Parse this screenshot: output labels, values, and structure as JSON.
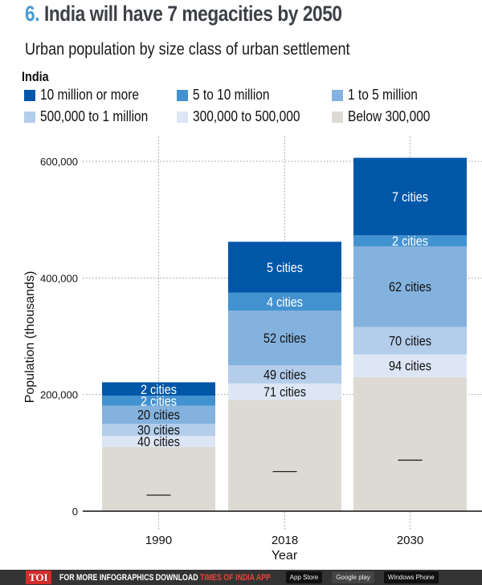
{
  "title": {
    "number": "6.",
    "text": "India will have 7 megacities by 2050"
  },
  "subtitle": "Urban population by size class of urban settlement",
  "region": "India",
  "footer": {
    "logo": "TOI",
    "text": "FOR MORE  INFOGRAPHICS DOWNLOAD ",
    "app": "TIMES OF INDIA  APP",
    "badges": [
      "App Store",
      "Google play",
      "Windows Phone"
    ]
  },
  "chart_data": {
    "type": "bar",
    "stacked": true,
    "title": "India will have 7 megacities by 2050",
    "xlabel": "Year",
    "ylabel": "Population (thousands)",
    "ylim": [
      0,
      600000
    ],
    "yticks": [
      0,
      200000,
      400000,
      600000
    ],
    "ytick_labels": [
      "0",
      "200,000",
      "400,000",
      "600,000"
    ],
    "categories": [
      "1990",
      "2018",
      "2030"
    ],
    "grid": "dotted",
    "legend": "top",
    "series": [
      {
        "name": "Below 300,000",
        "color": "#dcdad3",
        "values": [
          110000,
          191000,
          230000
        ],
        "labels": [
          "—",
          "—",
          "—"
        ]
      },
      {
        "name": "300,000 to 500,000",
        "color": "#dde6f4",
        "values": [
          19000,
          28000,
          39000
        ],
        "labels": [
          "40 cities",
          "71 cities",
          "94 cities"
        ]
      },
      {
        "name": "500,000 to 1 million",
        "color": "#b3cdea",
        "values": [
          21000,
          31000,
          47000
        ],
        "labels": [
          "30 cities",
          "49 cities",
          "70 cities"
        ]
      },
      {
        "name": "1 to 5 million",
        "color": "#84b2de",
        "values": [
          31000,
          94000,
          138000
        ],
        "labels": [
          "20 cities",
          "52 cities",
          "62 cities"
        ]
      },
      {
        "name": "5 to 10 million",
        "color": "#4392d0",
        "values": [
          17000,
          31000,
          19000
        ],
        "labels": [
          "2 cities",
          "4 cities",
          "2 cities"
        ]
      },
      {
        "name": "10 million or more",
        "color": "#0057a8",
        "values": [
          23000,
          87000,
          133000
        ],
        "labels": [
          "2 cities",
          "5 cities",
          "7 cities"
        ]
      }
    ]
  }
}
